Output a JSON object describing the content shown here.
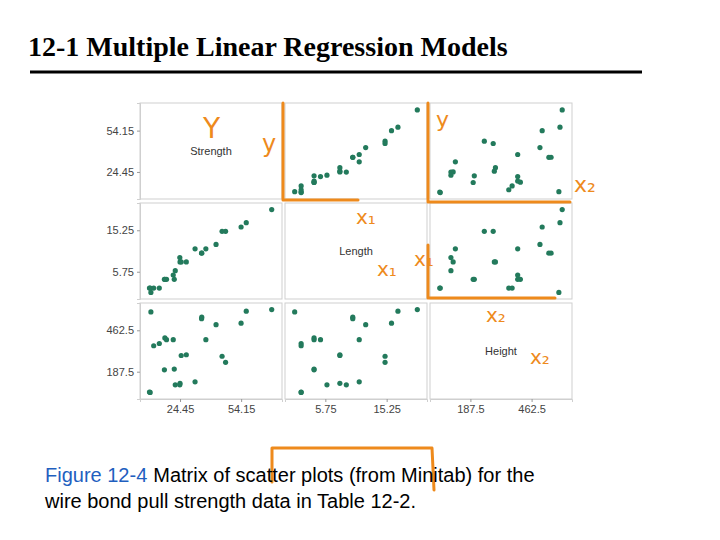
{
  "chart_data": {
    "type": "scatter_matrix",
    "title": "12-1 Multiple Linear Regression Models",
    "caption_label": "Figure 12-4",
    "caption": [
      "Matrix of scatter plots (from Minitab) for the",
      "wire bond pull strength data in Table 12-2."
    ],
    "color": "#237a5c",
    "variables": [
      {
        "name": "Strength",
        "values": [
          9.95,
          24.45,
          31.75,
          35.0,
          25.02,
          16.86,
          14.38,
          9.6,
          24.35,
          27.5,
          17.08,
          37.0,
          41.95,
          11.66,
          21.65,
          17.89,
          69.0,
          10.3,
          34.93,
          46.59,
          44.88,
          54.12,
          56.63,
          22.13,
          21.15
        ],
        "lim": [
          5,
          74
        ],
        "ticks": [
          24.45,
          54.15
        ]
      },
      {
        "name": "Length",
        "values": [
          2,
          8,
          11,
          10,
          8,
          4,
          2,
          2,
          9,
          8,
          4,
          11,
          12,
          2,
          4,
          4,
          20,
          1,
          10,
          15,
          15,
          16,
          17,
          6,
          5
        ],
        "lim": [
          -0.5,
          21.5
        ],
        "ticks": [
          5.75,
          15.25
        ]
      },
      {
        "name": "Height",
        "values": [
          50,
          110,
          120,
          550,
          295,
          200,
          375,
          52,
          100,
          300,
          412,
          400,
          500,
          360,
          205,
          400,
          600,
          585,
          540,
          250,
          290,
          510,
          590,
          100,
          400
        ],
        "lim": [
          6,
          644
        ],
        "ticks": [
          187.5,
          462.5
        ]
      }
    ],
    "annotations": [
      "Y",
      "y",
      "y",
      "x₂",
      "x₁",
      "x₁",
      "x₁",
      "x₂",
      "x₂"
    ]
  }
}
